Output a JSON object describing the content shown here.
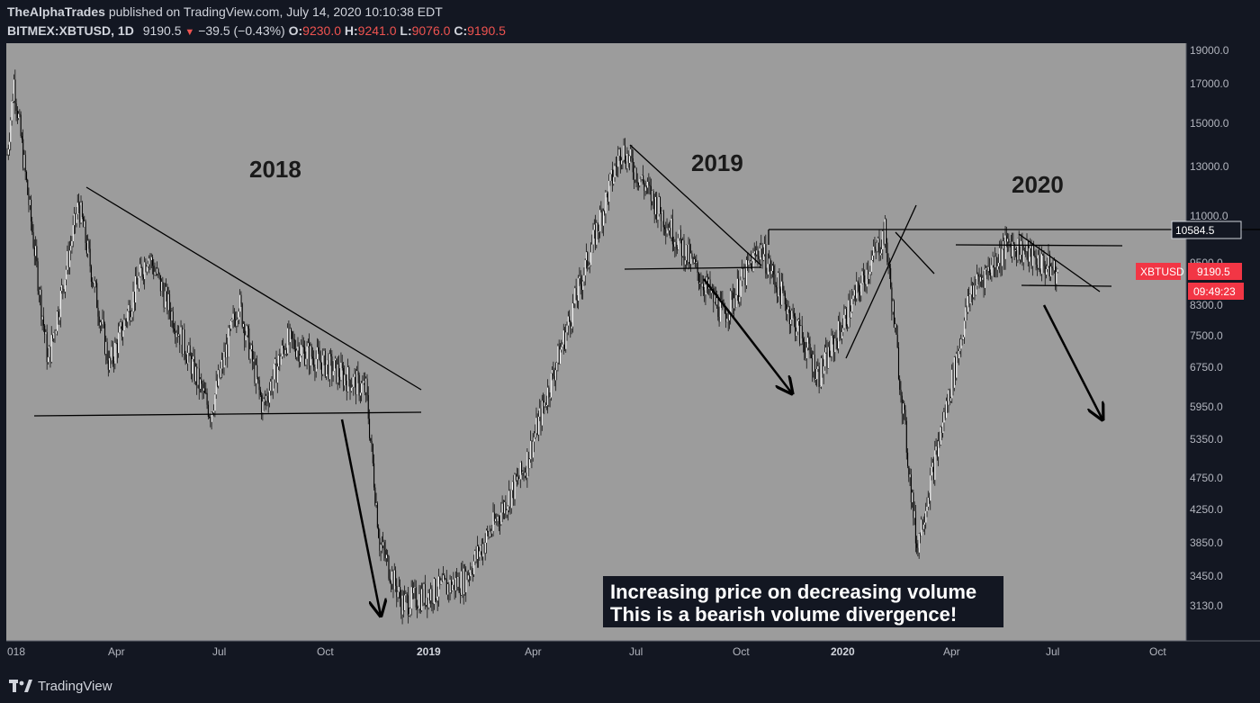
{
  "header": {
    "author": "TheAlphaTrades",
    "published_text": "published on TradingView.com, July 14, 2020 10:10:38 EDT",
    "symbol": "BITMEX:XBTUSD",
    "interval": "1D",
    "last": "9190.5",
    "change": "−39.5 (−0.43%)",
    "open_label": "O:",
    "open": "9230.0",
    "high_label": "H:",
    "high": "9241.0",
    "low_label": "L:",
    "low": "9076.0",
    "close_label": "C:",
    "close": "9190.5"
  },
  "footer": {
    "brand": "TradingView"
  },
  "chart_data": {
    "type": "candlestick",
    "title": "",
    "background": "#9c9c9c",
    "x_axis": {
      "ticks": [
        "018",
        "Apr",
        "Jul",
        "Oct",
        "2019",
        "Apr",
        "Jul",
        "Oct",
        "2020",
        "Apr",
        "Jul",
        "Oct"
      ],
      "bold_ticks": [
        "2019",
        "2020"
      ]
    },
    "y_axis": {
      "scale": "log",
      "ticks": [
        "19000.0",
        "17000.0",
        "15000.0",
        "13000.0",
        "11000.0",
        "9500.0",
        "8300.0",
        "7500.0",
        "6750.0",
        "5950.0",
        "5350.0",
        "4750.0",
        "4250.0",
        "3850.0",
        "3450.0",
        "3130.0"
      ]
    },
    "price_labels": {
      "level": "10584.5",
      "symbol": "XBTUSD",
      "last": "9190.5",
      "countdown": "09:49:23"
    },
    "year_labels": [
      "2018",
      "2019",
      "2020"
    ],
    "annotation": {
      "line1": "Increasing price on decreasing volume",
      "line2": "This is a bearish volume divergence!"
    },
    "key_closes": [
      {
        "date": "2018-01-01",
        "value": 13500
      },
      {
        "date": "2018-01-07",
        "value": 17100
      },
      {
        "date": "2018-02-06",
        "value": 6900
      },
      {
        "date": "2018-03-05",
        "value": 11500
      },
      {
        "date": "2018-04-01",
        "value": 6800
      },
      {
        "date": "2018-05-05",
        "value": 9800
      },
      {
        "date": "2018-06-29",
        "value": 5850
      },
      {
        "date": "2018-07-24",
        "value": 8400
      },
      {
        "date": "2018-08-14",
        "value": 5950
      },
      {
        "date": "2018-09-04",
        "value": 7400
      },
      {
        "date": "2018-11-13",
        "value": 6300
      },
      {
        "date": "2018-11-25",
        "value": 3850
      },
      {
        "date": "2018-12-15",
        "value": 3150
      },
      {
        "date": "2019-02-07",
        "value": 3400
      },
      {
        "date": "2019-04-02",
        "value": 4900
      },
      {
        "date": "2019-06-26",
        "value": 13800
      },
      {
        "date": "2019-09-24",
        "value": 8000
      },
      {
        "date": "2019-10-26",
        "value": 10000
      },
      {
        "date": "2019-12-17",
        "value": 6600
      },
      {
        "date": "2020-02-13",
        "value": 10500
      },
      {
        "date": "2020-03-12",
        "value": 3800
      },
      {
        "date": "2020-04-29",
        "value": 8700
      },
      {
        "date": "2020-06-02",
        "value": 10150
      },
      {
        "date": "2020-07-14",
        "value": 9190
      }
    ]
  }
}
